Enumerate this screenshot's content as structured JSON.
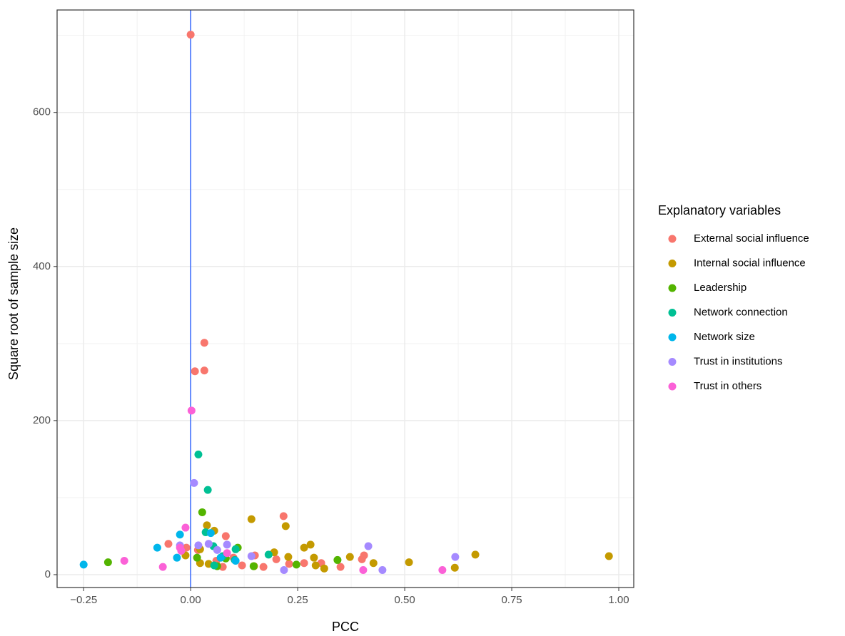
{
  "chart_data": {
    "type": "scatter",
    "x_label": "PCC",
    "y_label": "Square root of sample size",
    "legend_title": "Explanatory variables",
    "legend_position": "right",
    "xlim": [
      -0.312,
      1.035
    ],
    "ylim": [
      -16.7,
      733
    ],
    "xticks": [
      {
        "value": -0.25,
        "label": "−0.25"
      },
      {
        "value": 0,
        "label": "0.00"
      },
      {
        "value": 0.25,
        "label": "0.25"
      },
      {
        "value": 0.5,
        "label": "0.50"
      },
      {
        "value": 0.75,
        "label": "0.75"
      },
      {
        "value": 1,
        "label": "1.00"
      }
    ],
    "yticks": [
      0,
      200,
      400,
      600
    ],
    "x_minor_ticks": [
      -0.125,
      0.125,
      0.375,
      0.625,
      0.875
    ],
    "y_minor_ticks": [
      100,
      300,
      500,
      700
    ],
    "grid": true,
    "vline": {
      "x": 0,
      "color": "#3366ff"
    },
    "series": [
      {
        "name": "External social influence",
        "color": "#F8766D",
        "x": [
          0,
          0.032,
          0.01,
          0.032,
          0.217,
          0.082,
          -0.052,
          -0.01,
          0.017,
          0.06,
          0.075,
          0.1,
          0.12,
          0.15,
          0.17,
          0.2,
          0.23,
          0.265,
          0.305,
          0.35,
          0.405,
          0.4
        ],
        "y": [
          701,
          301,
          264,
          265,
          76,
          50,
          40,
          35,
          32,
          18,
          10,
          22,
          12,
          25,
          10,
          20,
          14,
          15,
          15,
          10,
          25,
          20
        ]
      },
      {
        "name": "Internal social influence",
        "color": "#C49A00",
        "x": [
          0.977,
          0.665,
          0.617,
          0.51,
          0.427,
          0.372,
          0.312,
          0.28,
          0.265,
          0.222,
          0.142,
          0.038,
          0.055,
          0.022,
          0.195,
          0.288,
          0.292,
          0.228,
          0.022,
          0.042,
          0.148,
          -0.012
        ],
        "y": [
          24,
          26,
          9,
          16,
          15,
          23,
          8,
          39,
          35,
          63,
          72,
          64,
          57,
          33,
          29,
          22,
          12,
          23,
          15,
          14,
          11,
          25
        ]
      },
      {
        "name": "Leadership",
        "color": "#53B400",
        "x": [
          -0.193,
          0.027,
          0.343,
          0.247,
          0.11,
          0.147,
          0.015,
          0.082,
          0.062
        ],
        "y": [
          16,
          81,
          19,
          13,
          35,
          11,
          22,
          21,
          11
        ]
      },
      {
        "name": "Network connection",
        "color": "#00C094",
        "x": [
          0.018,
          0.04,
          0.035,
          0.053,
          0.182,
          0.105,
          0.075,
          0.055,
          0.103
        ],
        "y": [
          156,
          110,
          55,
          37,
          26,
          33,
          24,
          12,
          19
        ]
      },
      {
        "name": "Network size",
        "color": "#00B6EB",
        "x": [
          -0.25,
          -0.078,
          -0.025,
          0.047,
          -0.032,
          0.105,
          0.07
        ],
        "y": [
          13,
          35,
          52,
          54,
          22,
          18,
          22
        ]
      },
      {
        "name": "Trust in institutions",
        "color": "#A58AFF",
        "x": [
          0.008,
          0.415,
          0.618,
          0.448,
          0.218,
          0.042,
          0.085,
          0.018,
          0.142,
          0.062,
          -0.025
        ],
        "y": [
          119,
          37,
          23,
          6,
          6,
          40,
          39,
          38,
          24,
          32,
          38
        ]
      },
      {
        "name": "Trust in others",
        "color": "#FB61D7",
        "x": [
          0.002,
          -0.012,
          -0.155,
          -0.065,
          0.588,
          0.403,
          -0.025,
          -0.022,
          0.085
        ],
        "y": [
          213,
          61,
          18,
          10,
          6,
          6,
          35,
          31,
          28
        ]
      }
    ]
  }
}
